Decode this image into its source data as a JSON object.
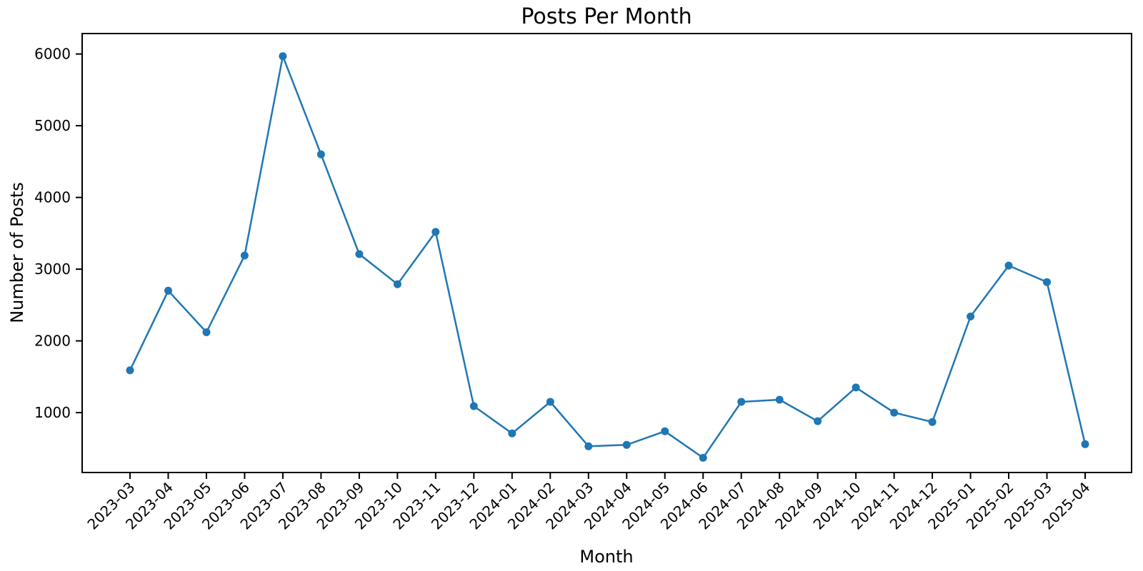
{
  "chart_data": {
    "type": "line",
    "title": "Posts Per Month",
    "xlabel": "Month",
    "ylabel": "Number of Posts",
    "x": [
      "2023-03",
      "2023-04",
      "2023-05",
      "2023-06",
      "2023-07",
      "2023-08",
      "2023-09",
      "2023-10",
      "2023-11",
      "2023-12",
      "2024-01",
      "2024-02",
      "2024-03",
      "2024-04",
      "2024-05",
      "2024-06",
      "2024-07",
      "2024-08",
      "2024-09",
      "2024-10",
      "2024-11",
      "2024-12",
      "2025-01",
      "2025-02",
      "2025-03",
      "2025-04"
    ],
    "series": [
      {
        "name": "Posts",
        "values": [
          1590,
          2700,
          2120,
          3190,
          5970,
          4600,
          3210,
          2790,
          3520,
          1090,
          710,
          1150,
          530,
          550,
          740,
          370,
          1150,
          1180,
          880,
          1350,
          1000,
          870,
          2340,
          3050,
          2820,
          560
        ]
      }
    ],
    "yticks": [
      1000,
      2000,
      3000,
      4000,
      5000,
      6000
    ],
    "ylim": [
      165,
      6285
    ],
    "grid": false,
    "legend": "none",
    "line_color": "#1f77b4",
    "marker": "circle",
    "x_tick_rotation_deg": -45
  }
}
